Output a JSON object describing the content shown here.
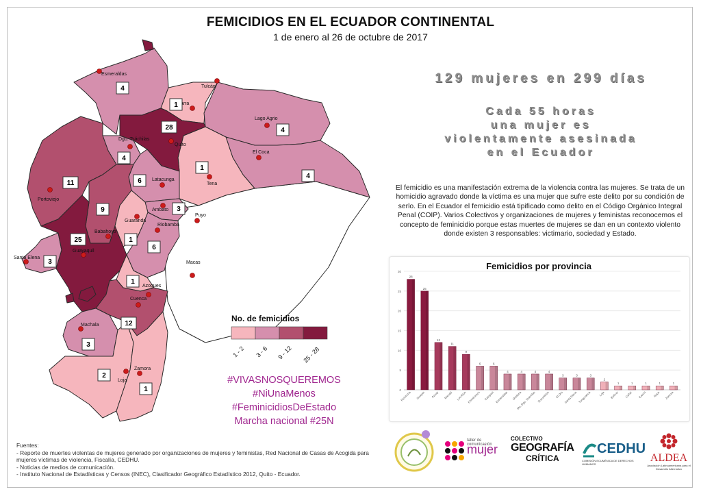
{
  "header": {
    "title": "FEMICIDIOS EN EL ECUADOR CONTINENTAL",
    "subtitle": "1 de enero al 26 de octubre de 2017"
  },
  "headline": "129 mujeres en 299 días",
  "stat_lines": [
    "Cada 55 horas",
    "una mujer es",
    "violentamente asesinada",
    "en el Ecuador"
  ],
  "description": "El femicidio es una manifestación extrema de la violencia contra las mujeres. Se trata de un homicidio agravado donde la víctima es una mujer que sufre este delito por su condición de serlo. En el Ecuador el femicidio está tipificado como delito en el Código Orgánico Integral Penal (COIP). Varios Colectivos y organizaciones de mujeres y feministas reconocemos el concepto de feminicidio porque estas muertes de mujeres se dan en un contexto violento donde existen 3 responsables: victimario, sociedad y Estado.",
  "map": {
    "colors": {
      "c1": "#f6b6bd",
      "c2": "#d58fad",
      "c3": "#b2506e",
      "c4": "#831a3e",
      "unknown": "#ffffff",
      "stroke": "#2a2a2a",
      "dot": "#cc1b1b"
    },
    "province_counts": [
      {
        "id": "esmeraldas",
        "count": "4",
        "level": "c2"
      },
      {
        "id": "carchi",
        "count": "1",
        "level": "c1"
      },
      {
        "id": "pichincha",
        "count": "28",
        "level": "c4"
      },
      {
        "id": "sucumbios",
        "count": "4",
        "level": "c2"
      },
      {
        "id": "napo",
        "count": "1",
        "level": "c1"
      },
      {
        "id": "orellana",
        "count": "4",
        "level": "c2"
      },
      {
        "id": "santo-domingo",
        "count": "4",
        "level": "c2"
      },
      {
        "id": "manabi",
        "count": "11",
        "level": "c3"
      },
      {
        "id": "cotopaxi",
        "count": "6",
        "level": "c2"
      },
      {
        "id": "tungurahua",
        "count": "3",
        "level": "c2"
      },
      {
        "id": "los-rios",
        "count": "9",
        "level": "c3"
      },
      {
        "id": "bolivar",
        "count": "1",
        "level": "c1"
      },
      {
        "id": "guayas",
        "count": "25",
        "level": "c4"
      },
      {
        "id": "chimborazo",
        "count": "6",
        "level": "c2"
      },
      {
        "id": "santa-elena",
        "count": "3",
        "level": "c2"
      },
      {
        "id": "canar",
        "count": "1",
        "level": "c1"
      },
      {
        "id": "azuay",
        "count": "12",
        "level": "c3"
      },
      {
        "id": "el-oro",
        "count": "3",
        "level": "c2"
      },
      {
        "id": "loja",
        "count": "2",
        "level": "c1"
      },
      {
        "id": "zamora",
        "count": "1",
        "level": "c1"
      }
    ],
    "cities": [
      "Esmeraldas",
      "Tulcán",
      "Ibarra",
      "Lago Agrio",
      "Dgo. Tsáchilas",
      "Quito",
      "El Coca",
      "Tena",
      "Portoviejo",
      "Latacunga",
      "Ambato",
      "Puyo",
      "Guaranda",
      "Babahoyo",
      "Riobamba",
      "Santa Elena",
      "Guayaquil",
      "Macas",
      "Azogues",
      "Cuenca",
      "Machala",
      "Loja",
      "Zamora"
    ]
  },
  "legend": {
    "title": "No. de femicidios",
    "ranges": [
      "1 - 2",
      "3 - 6",
      "9 - 12",
      "25 - 28"
    ]
  },
  "hashtags": [
    "#VIVASNOSQUEREMOS",
    "#NiUnaMenos",
    "#FeminicidiosDeEstado",
    "Marcha nacional #25N"
  ],
  "chart_data": {
    "type": "bar",
    "title": "Femicidios por provincia",
    "categories": [
      "Pichincha",
      "Guayas",
      "Azuay",
      "Manabí",
      "Los Ríos",
      "Chimborazo",
      "Cotopaxi",
      "Esmeraldas",
      "Orellana",
      "Sto. Dgo. Tsáchilas",
      "Sucumbíos",
      "El Oro",
      "Santa Elena",
      "Tungurahua",
      "Loja",
      "Bolívar",
      "Cañar",
      "Carchi",
      "Napo",
      "Zamora"
    ],
    "values": [
      28,
      25,
      12,
      11,
      9,
      6,
      6,
      4,
      4,
      4,
      4,
      3,
      3,
      3,
      2,
      1,
      1,
      1,
      1,
      1
    ],
    "ylim": [
      0,
      30
    ],
    "yticks": [
      "0",
      "5",
      "10",
      "15",
      "20",
      "25",
      "30"
    ],
    "grid": true,
    "colors": {
      "bar": "#8a1a3f",
      "bar_light": "#f0b0b8"
    }
  },
  "sources": {
    "heading": "Fuentes:",
    "lines": [
      "- Reporte de muertes violentas de mujeres generado por  organizaciones de mujeres y feministas, Red Nacional de Casas de Acogida para mujeres víctimas de violencia, Fiscalía, CEDHU.",
      "- Noticias de medios de comunicación.",
      "- Instituto Nacional de Estadísticas y Censos (INEC), Clasificador Geográfico Estadístico 2012, Quito - Ecuador."
    ]
  },
  "logos": {
    "mujer": {
      "small": "taller de comunicación",
      "main": "mujer"
    },
    "geografia": {
      "line1": "COLECTIVO",
      "line2": "GEOGRAFÍA",
      "line3": "CRÍTICA"
    },
    "cedhu": {
      "main": "CEDHU",
      "sub": "COMISIÓN ECUMÉNICA DE DERECHOS HUMANOS"
    },
    "aldea": {
      "main": "ALDEA",
      "sub": "Asociación Latinoamericana para el Desarrollo Alternativo"
    }
  }
}
